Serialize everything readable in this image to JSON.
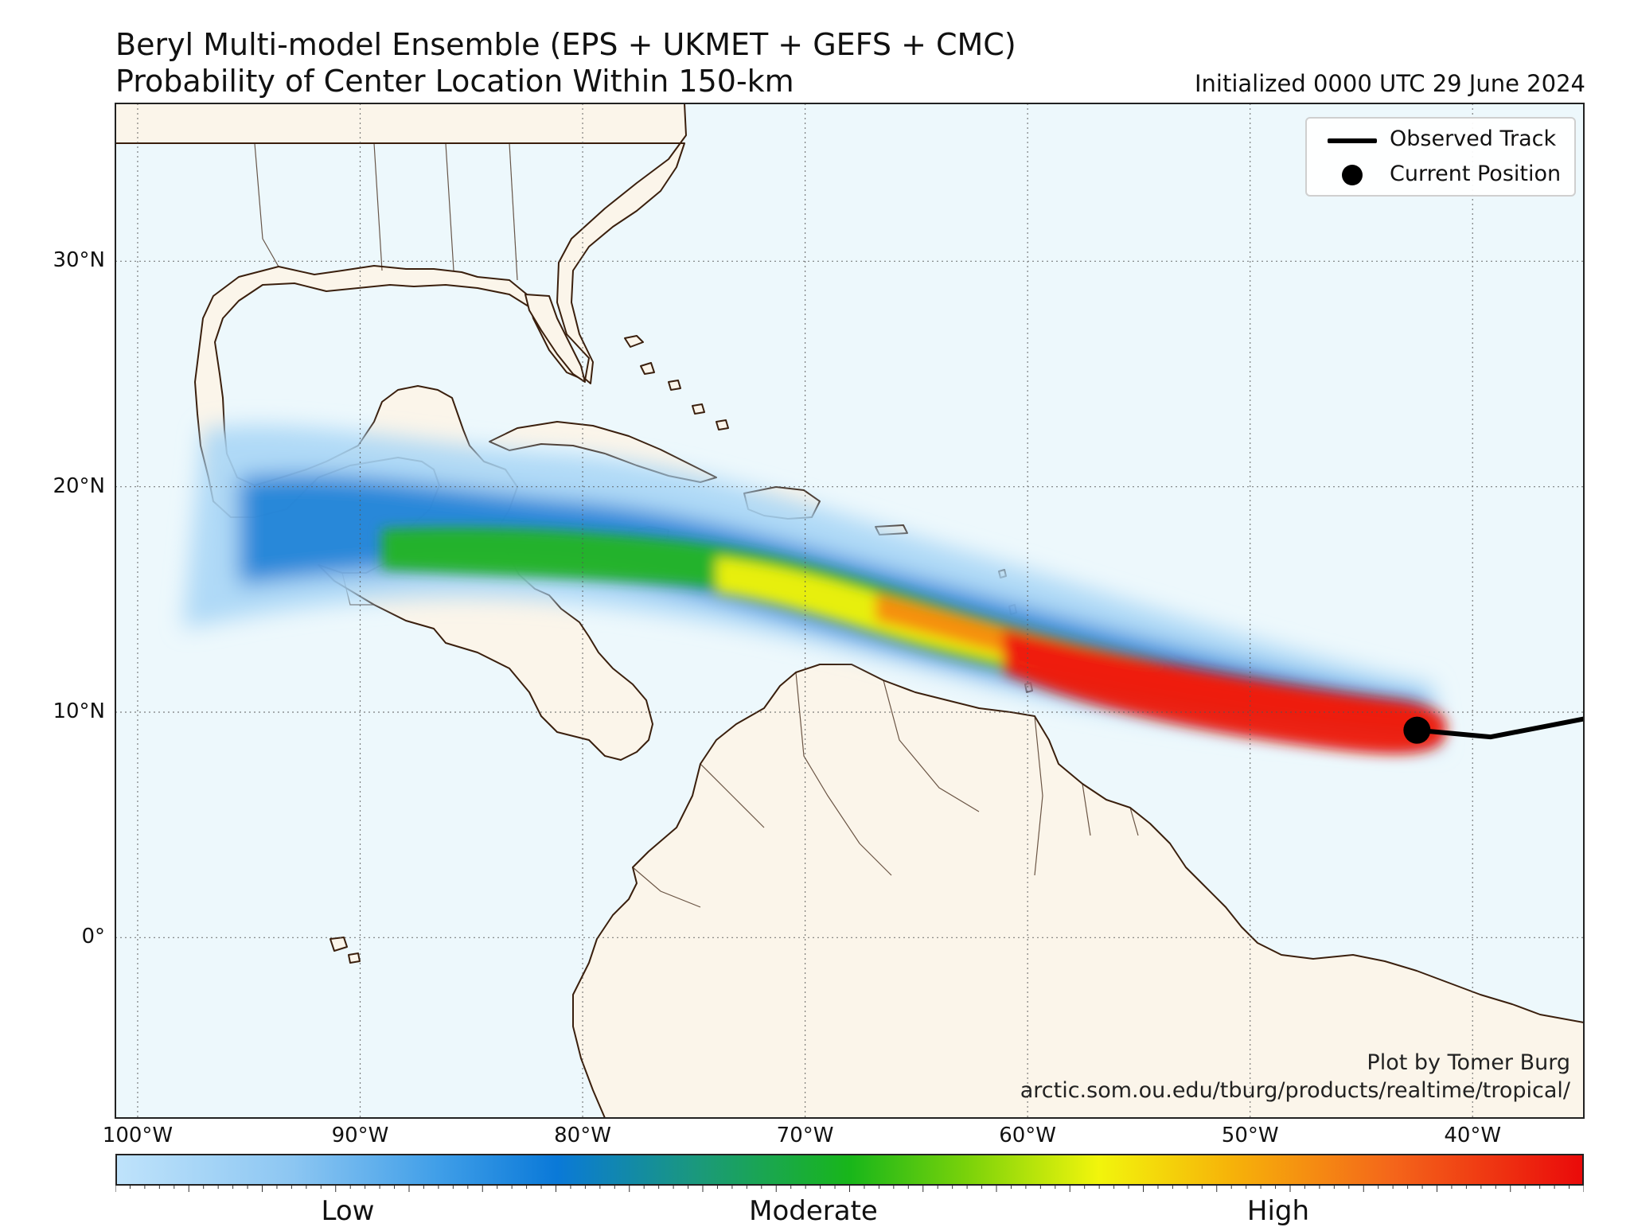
{
  "title": {
    "line1": "Beryl Multi-model Ensemble (EPS + UKMET + GEFS + CMC)",
    "line2": "Probability of Center Location Within 150-km",
    "initialized": "Initialized 0000 UTC 29 June 2024"
  },
  "map": {
    "lon_range": [
      -101,
      -35
    ],
    "lat_range": [
      -8,
      37
    ],
    "ocean_color": "#edf8fc",
    "land_color": "#fbf5ea",
    "border_color": "#3a1f0d",
    "gridlines": true,
    "lat_ticks": [
      {
        "value": 30,
        "label": "30°N"
      },
      {
        "value": 20,
        "label": "20°N"
      },
      {
        "value": 10,
        "label": "10°N"
      },
      {
        "value": 0,
        "label": "0°"
      }
    ],
    "lon_ticks": [
      {
        "value": -100,
        "label": "100°W"
      },
      {
        "value": -90,
        "label": "90°W"
      },
      {
        "value": -80,
        "label": "80°W"
      },
      {
        "value": -70,
        "label": "70°W"
      },
      {
        "value": -60,
        "label": "60°W"
      },
      {
        "value": -50,
        "label": "50°W"
      },
      {
        "value": -40,
        "label": "40°W"
      }
    ],
    "observed_track": [
      [
        -42.5,
        9.2
      ],
      [
        -39.2,
        8.9
      ],
      [
        -35,
        9.7
      ]
    ],
    "current_position": {
      "lon": -42.5,
      "lat": 9.2
    }
  },
  "legend": {
    "observed_track": "Observed Track",
    "current_position": "Current Position"
  },
  "credit": {
    "line1": "Plot by Tomer Burg",
    "line2": "arctic.som.ou.edu/tburg/products/realtime/tropical/"
  },
  "colorbar": {
    "low": "Low",
    "moderate": "Moderate",
    "high": "High"
  }
}
